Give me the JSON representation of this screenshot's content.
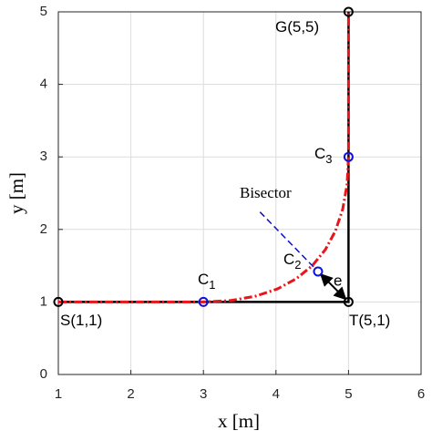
{
  "chart_data": {
    "type": "line",
    "xlabel": "x [m]",
    "ylabel": "y [m]",
    "xlim": [
      1,
      6
    ],
    "ylim": [
      0,
      5
    ],
    "xticks": [
      1,
      2,
      3,
      4,
      5,
      6
    ],
    "yticks": [
      0,
      1,
      2,
      3,
      4,
      5
    ],
    "grid": true,
    "series": [
      {
        "color": "#000000",
        "style": "solid",
        "x": [
          1,
          5,
          5
        ],
        "y": [
          1,
          1,
          5
        ]
      },
      {
        "color": "#e8151b",
        "style": "dashdot",
        "x": [
          1,
          3,
          3.38,
          3.72,
          4.02,
          4.28,
          4.5,
          4.68,
          4.82,
          4.92,
          4.98,
          5,
          5
        ],
        "y": [
          1,
          1,
          1.02,
          1.08,
          1.18,
          1.32,
          1.5,
          1.72,
          1.98,
          2.28,
          2.62,
          3,
          5
        ]
      }
    ],
    "points": [
      {
        "label": "S(1,1)",
        "x": 1,
        "y": 1,
        "color": "#000000"
      },
      {
        "label": "T(5,1)",
        "x": 5,
        "y": 1,
        "color": "#000000"
      },
      {
        "label": "G(5,5)",
        "x": 5,
        "y": 5,
        "color": "#000000"
      },
      {
        "label": "C",
        "sub": "1",
        "x": 3,
        "y": 1,
        "color": "#1010e0"
      },
      {
        "label": "C",
        "sub": "2",
        "x": 4.58,
        "y": 1.42,
        "color": "#1010e0"
      },
      {
        "label": "C",
        "sub": "3",
        "x": 5,
        "y": 3,
        "color": "#1010e0"
      }
    ],
    "bisector": {
      "label": "Bisector",
      "color": "#1010c8",
      "x": [
        3.78,
        4.55
      ],
      "y": [
        2.24,
        1.45
      ]
    },
    "arrow": {
      "label": "e",
      "color": "#000000",
      "x": [
        4.58,
        5
      ],
      "y": [
        1.42,
        1
      ]
    }
  }
}
